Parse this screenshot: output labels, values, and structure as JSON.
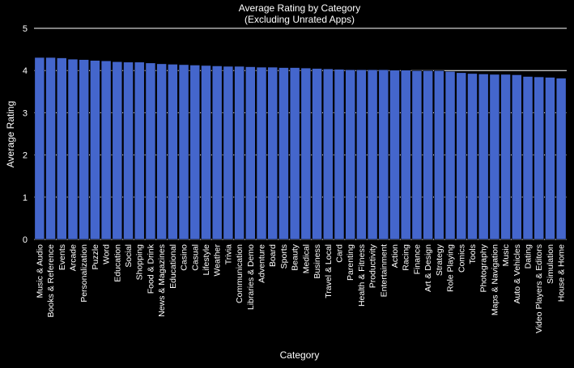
{
  "chart_data": {
    "type": "bar",
    "title": "Average Rating by Category",
    "subtitle": "(Excluding Unrated Apps)",
    "xlabel": "Category",
    "ylabel": "Average Rating",
    "ylim": [
      0,
      5
    ],
    "yticks": [
      0,
      1,
      2,
      3,
      4,
      5
    ],
    "grid": true,
    "colors": {
      "background": "#000000",
      "bar": "#4466cc",
      "bar_edge": "#000000",
      "grid": "#ffffff",
      "text": "#ffffff"
    },
    "categories": [
      "Music & Audio",
      "Books & Reference",
      "Events",
      "Arcade",
      "Personalization",
      "Puzzle",
      "Word",
      "Education",
      "Social",
      "Shopping",
      "Food & Drink",
      "News & Magazines",
      "Educational",
      "Casino",
      "Casual",
      "Lifestyle",
      "Weather",
      "Trivia",
      "Communication",
      "Libraries & Demo",
      "Adventure",
      "Board",
      "Sports",
      "Beauty",
      "Medical",
      "Business",
      "Travel & Local",
      "Card",
      "Parenting",
      "Health & Fitness",
      "Productivity",
      "Entertainment",
      "Action",
      "Racing",
      "Finance",
      "Art & Design",
      "Strategy",
      "Role Playing",
      "Comics",
      "Tools",
      "Photography",
      "Maps & Navigation",
      "Music",
      "Auto & Vehicles",
      "Dating",
      "Video Players & Editors",
      "Simulation",
      "House & Home"
    ],
    "values": [
      4.31,
      4.31,
      4.3,
      4.27,
      4.26,
      4.24,
      4.23,
      4.21,
      4.2,
      4.2,
      4.18,
      4.16,
      4.15,
      4.14,
      4.13,
      4.12,
      4.11,
      4.1,
      4.1,
      4.09,
      4.08,
      4.08,
      4.07,
      4.07,
      4.06,
      4.05,
      4.04,
      4.03,
      4.02,
      4.02,
      4.02,
      4.02,
      4.01,
      4.01,
      4.0,
      4.0,
      4.0,
      3.98,
      3.95,
      3.93,
      3.92,
      3.91,
      3.91,
      3.9,
      3.86,
      3.85,
      3.84,
      3.82
    ]
  }
}
